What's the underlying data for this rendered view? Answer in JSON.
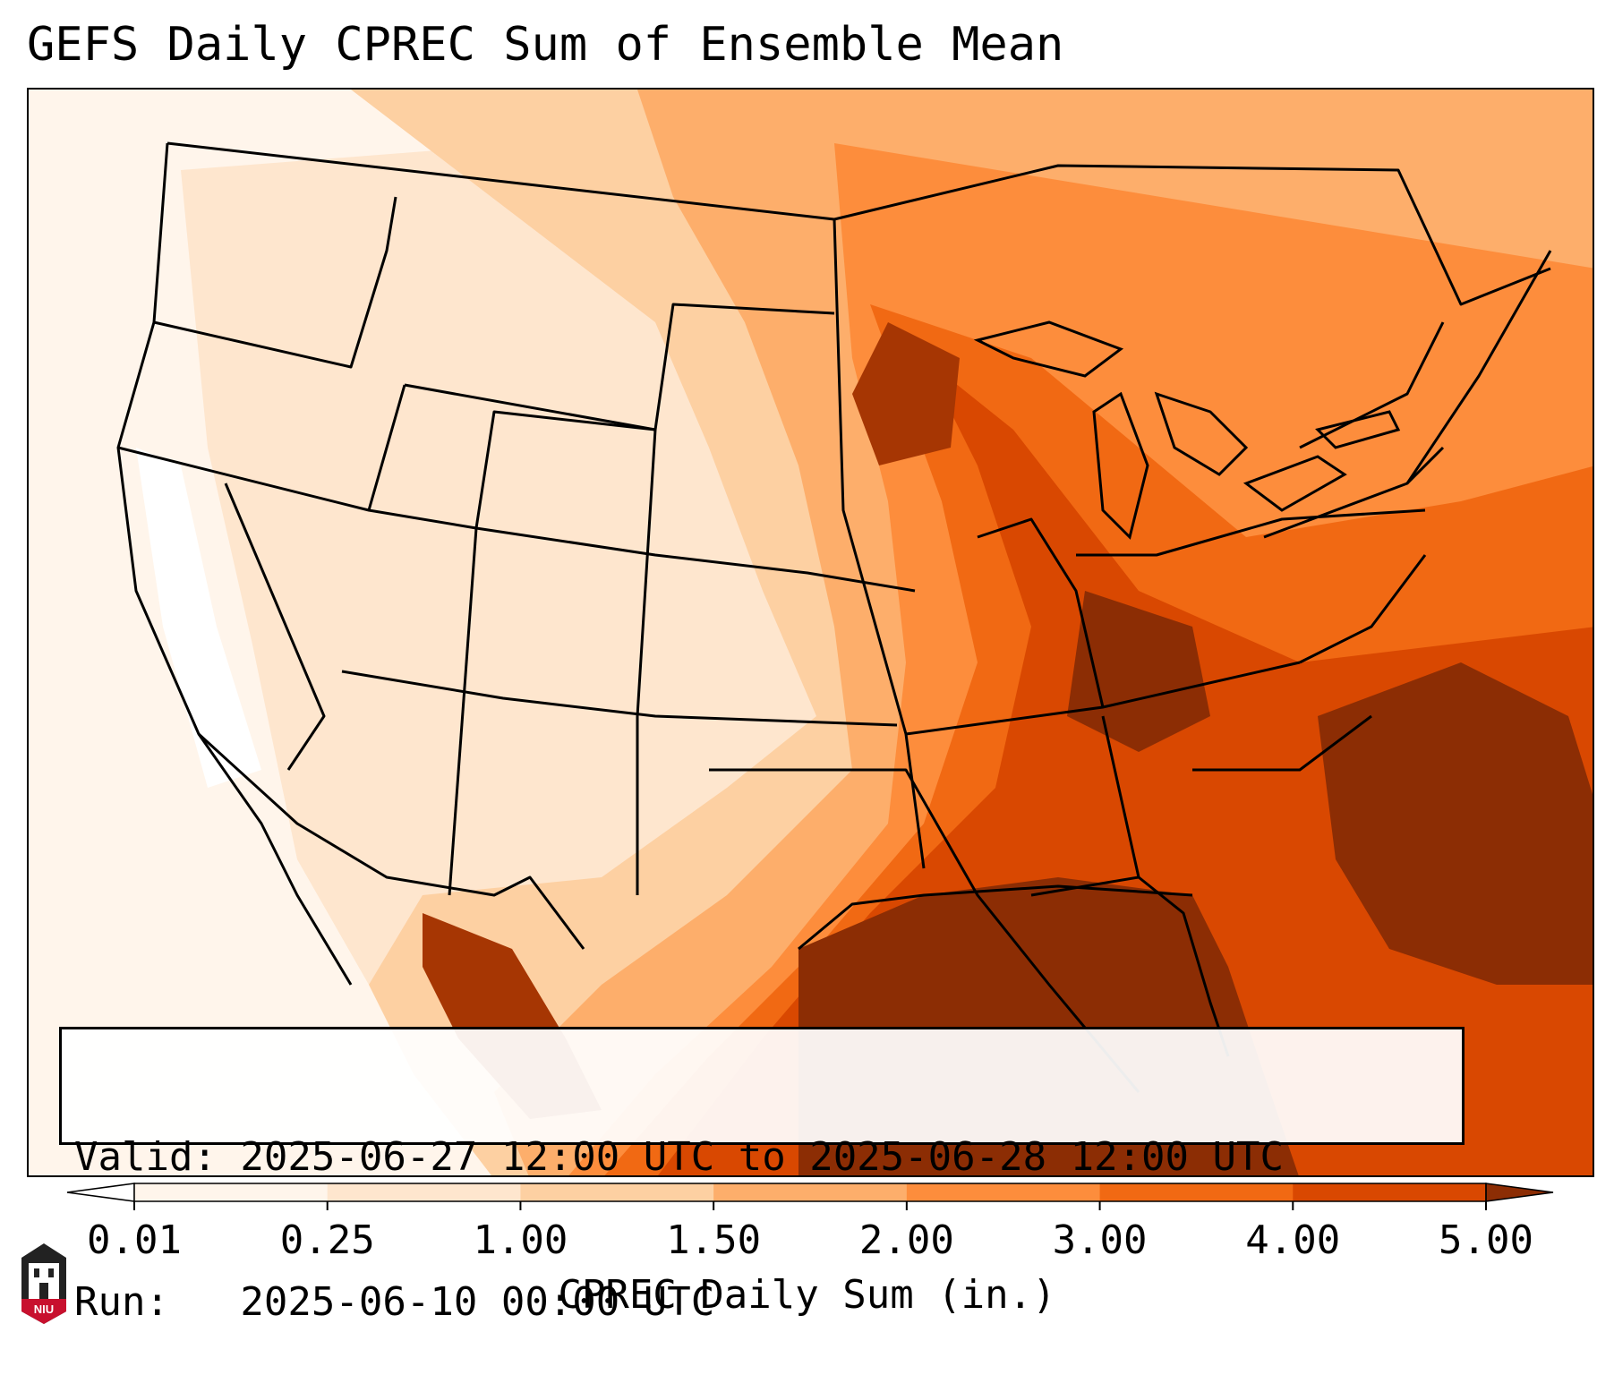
{
  "title": "GEFS Daily CPREC Sum of Ensemble Mean",
  "info": {
    "valid": "Valid: 2025-06-27 12:00 UTC to 2025-06-28 12:00 UTC",
    "run": "Run:   2025-06-10 00:00 UTC"
  },
  "colorbar": {
    "label": "CPREC Daily Sum (in.)",
    "ticks": [
      "0.01",
      "0.25",
      "1.00",
      "1.50",
      "2.00",
      "3.00",
      "4.00",
      "5.00"
    ],
    "colors": [
      "#fff5eb",
      "#fee6ce",
      "#fdd0a2",
      "#fdae6b",
      "#fd8d3c",
      "#f16913",
      "#d94801",
      "#8c2d04"
    ],
    "under_color": "#ffffff",
    "extend": "both"
  },
  "map": {
    "region": "Continental United States",
    "projection": "Lambert Conformal",
    "field": "CPREC daily sum, ensemble mean",
    "heavy_areas": [
      "Gulf of Mexico",
      "Southeast US",
      "Western Atlantic",
      "Upper Midwest"
    ],
    "light_areas": [
      "Pacific Coast",
      "Great Basin",
      "Northern Rockies"
    ]
  },
  "logo": {
    "text": "NIU",
    "color": "#c8102e"
  }
}
